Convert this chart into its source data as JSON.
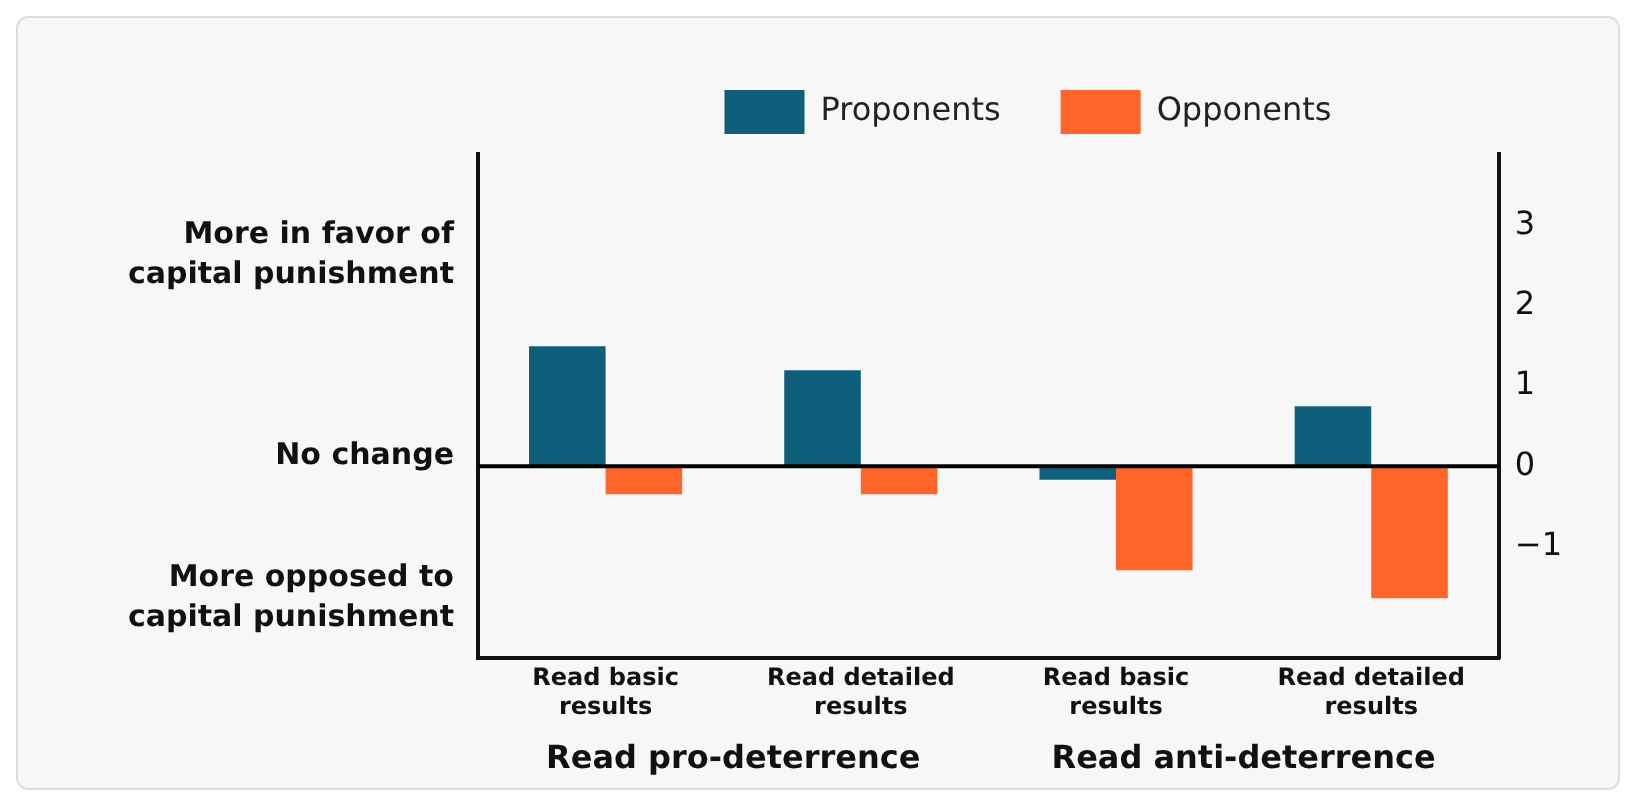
{
  "chart_data": {
    "type": "bar",
    "categories": [
      "Read basic results",
      "Read detailed results",
      "Read basic results",
      "Read detailed results"
    ],
    "series": [
      {
        "name": "Proponents",
        "color": "#0e5f7c",
        "values": [
          1.5,
          1.2,
          -0.17,
          0.75
        ]
      },
      {
        "name": "Opponents",
        "color": "#ff6529",
        "values": [
          -0.35,
          -0.35,
          -1.3,
          -1.65
        ]
      }
    ],
    "ylim": [
      -2.4,
      3.9
    ],
    "yticks": [
      {
        "value": -1,
        "label": "−1"
      },
      0,
      1,
      2,
      3
    ],
    "ref_lines": [
      {
        "axis": "y",
        "value": 0,
        "color": "#000000"
      }
    ],
    "annotations": [
      "More in favor of capital punishment",
      "No change",
      "More opposed to capital punishment",
      "Read pro-deterrence",
      "Read anti-deterrence"
    ],
    "legend": "top",
    "grid": false
  }
}
